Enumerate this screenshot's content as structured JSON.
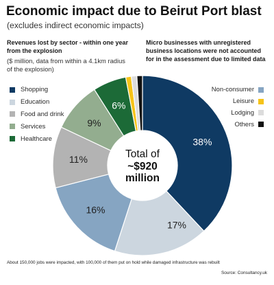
{
  "title": "Economic impact due to Beirut Port blast",
  "subtitle": "(excludes indirect economic impacts)",
  "left_note": {
    "heading_lines": [
      "Revenues lost by sector - within one year",
      "from the explosion"
    ],
    "unit_lines": [
      "($ million, data from within a 4.1km radius",
      "of the explosion)"
    ]
  },
  "right_note": {
    "lines": [
      "Micro businesses with unregistered",
      "business locations were not accounted",
      "for in the assessment due to limited data"
    ]
  },
  "center_total": {
    "lines": [
      "Total of",
      "~$920",
      "million"
    ]
  },
  "chart_data": {
    "type": "pie",
    "slices": [
      {
        "label": "Shopping",
        "value": 38,
        "data_label": "38%",
        "color": "#0f3a63",
        "legend": "left"
      },
      {
        "label": "Education",
        "value": 17,
        "data_label": "17%",
        "color": "#ccd6df",
        "legend": "left"
      },
      {
        "label": "Non-consumer",
        "value": 16,
        "data_label": "16%",
        "color": "#86a5c2",
        "legend": "right"
      },
      {
        "label": "Food and drink",
        "value": 11,
        "data_label": "11%",
        "color": "#b3b3b3",
        "legend": "left"
      },
      {
        "label": "Services",
        "value": 9,
        "data_label": "9%",
        "color": "#93ad8f",
        "legend": "left"
      },
      {
        "label": "Healthcare",
        "value": 6,
        "data_label": "6%",
        "color": "#1c6a37",
        "legend": "left"
      },
      {
        "label": "Leisure",
        "value": 1,
        "color": "#f6c318",
        "legend": "right"
      },
      {
        "label": "Lodging",
        "value": 1,
        "color": "#dcdcdc",
        "legend": "right"
      },
      {
        "label": "Others",
        "value": 1,
        "color": "#111111",
        "legend": "right"
      }
    ]
  },
  "footnote": "About 150,000 jobs were impacted, with 100,000 of them put on hold while damaged infrastructure was rebuilt",
  "source": "Source: Consultancy.uk"
}
